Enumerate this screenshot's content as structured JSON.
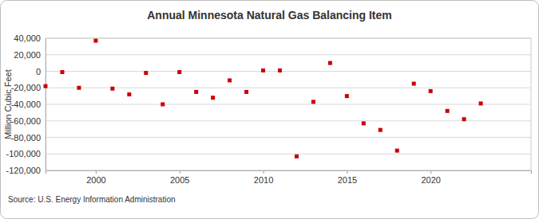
{
  "chart_data": {
    "type": "scatter",
    "title": "Annual Minnesota Natural Gas Balancing Item",
    "y_label": "Million Cubic Feet",
    "source": "Source: U.S. Energy Information Administration",
    "x": [
      1997,
      1998,
      1999,
      2000,
      2001,
      2002,
      2003,
      2004,
      2005,
      2006,
      2007,
      2008,
      2009,
      2010,
      2011,
      2012,
      2013,
      2014,
      2015,
      2016,
      2017,
      2018,
      2019,
      2020,
      2021,
      2022,
      2023
    ],
    "values": [
      -18000,
      -1000,
      -20000,
      37000,
      -21000,
      -28000,
      -2000,
      -40000,
      -1000,
      -25000,
      -32000,
      -11000,
      -25000,
      1000,
      1000,
      -103000,
      -37000,
      10000,
      -30000,
      -63000,
      -71000,
      -96000,
      -15000,
      -24000,
      -48000,
      -58000,
      -39000
    ],
    "color": "#cc0000",
    "marker": "square",
    "xlim": [
      1997,
      2026
    ],
    "xticks": [
      2000,
      2005,
      2010,
      2015,
      2020
    ],
    "ylim": [
      -120000,
      40000
    ],
    "yticks": [
      {
        "value": -120000,
        "label": "-120,000"
      },
      {
        "value": -100000,
        "label": "-100,000"
      },
      {
        "value": -80000,
        "label": "-80,000"
      },
      {
        "value": -60000,
        "label": "-60,000"
      },
      {
        "value": -40000,
        "label": "-40,000"
      },
      {
        "value": -20000,
        "label": "-20,000"
      },
      0,
      {
        "value": 20000,
        "label": "20,000"
      },
      {
        "value": 40000,
        "label": "40,000"
      }
    ],
    "grid": true
  }
}
